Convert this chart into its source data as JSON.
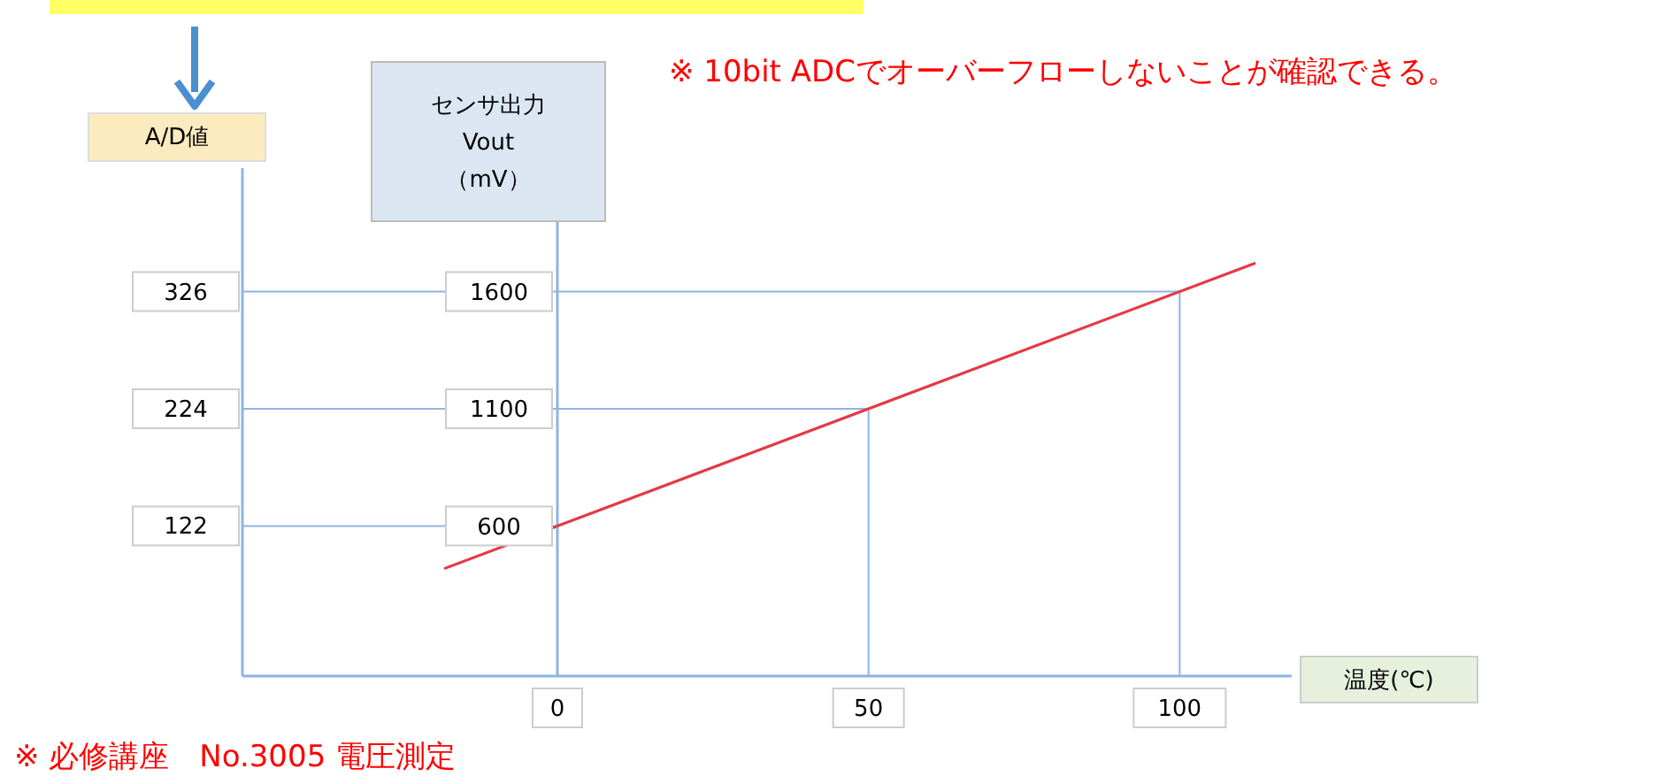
{
  "chart_data": {
    "type": "line",
    "xlabel": "温度(℃)",
    "ylabel": "センサ出力\nVout\n（mV）",
    "y2label": "A/D値",
    "x": [
      -18,
      112
    ],
    "series": [
      {
        "color": "#e53945",
        "values": [
          420,
          1720
        ]
      }
    ],
    "xlim": [
      -50.6,
      118
    ],
    "xticks": [
      0,
      50,
      100
    ],
    "ylim": [
      -40,
      1900
    ],
    "yticks": [
      600,
      1100,
      1600
    ],
    "y2lim": [
      -8.6,
      387.2
    ],
    "y2ticks": [
      122,
      224,
      326
    ],
    "ref_lines": [
      {
        "axis": "y",
        "value": 600,
        "color": "#8eb4e3"
      },
      {
        "axis": "y",
        "value": 1100,
        "color": "#8eb4e3"
      },
      {
        "axis": "y",
        "value": 1600,
        "color": "#8eb4e3"
      },
      {
        "axis": "x",
        "value": 50,
        "color": "#8eb4e3"
      },
      {
        "axis": "x",
        "value": 100,
        "color": "#8eb4e3"
      }
    ],
    "annotations": [
      "※ 10bit ADCでオーバーフローしないことが確認できる。",
      "※ 必修講座　No.3005 電圧測定"
    ]
  }
}
